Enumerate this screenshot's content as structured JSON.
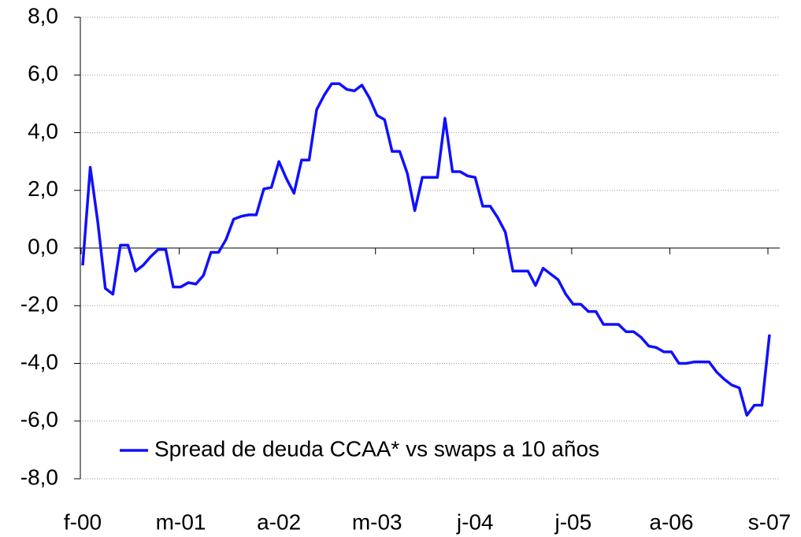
{
  "chart_data": {
    "type": "line",
    "categories": [
      "f-00",
      null,
      null,
      null,
      null,
      null,
      null,
      null,
      null,
      null,
      null,
      null,
      null,
      "m-01",
      null,
      null,
      null,
      null,
      null,
      null,
      null,
      null,
      null,
      null,
      null,
      null,
      "a-02",
      null,
      null,
      null,
      null,
      null,
      null,
      null,
      null,
      null,
      null,
      null,
      null,
      "m-03",
      null,
      null,
      null,
      null,
      null,
      null,
      null,
      null,
      null,
      null,
      null,
      null,
      "j-04",
      null,
      null,
      null,
      null,
      null,
      null,
      null,
      null,
      null,
      null,
      null,
      null,
      "j-05",
      null,
      null,
      null,
      null,
      null,
      null,
      null,
      null,
      null,
      null,
      null,
      null,
      "a-06",
      null,
      null,
      null,
      null,
      null,
      null,
      null,
      null,
      null,
      null,
      null,
      null,
      "s-07"
    ],
    "series": [
      {
        "name": "Spread de deuda CCAA* vs swaps a 10 años",
        "color": "#1010ff",
        "values": [
          -0.6,
          2.8,
          0.9,
          -1.4,
          -1.6,
          0.1,
          0.1,
          -0.8,
          -0.6,
          -0.3,
          -0.05,
          -0.05,
          -1.35,
          -1.35,
          -1.2,
          -1.25,
          -0.95,
          -0.15,
          -0.15,
          0.3,
          1.0,
          1.1,
          1.15,
          1.15,
          2.05,
          2.1,
          3.0,
          2.4,
          1.9,
          3.05,
          3.05,
          4.8,
          5.3,
          5.7,
          5.7,
          5.5,
          5.45,
          5.65,
          5.2,
          4.6,
          4.45,
          3.35,
          3.35,
          2.6,
          1.3,
          2.45,
          2.45,
          2.45,
          4.5,
          2.65,
          2.65,
          2.5,
          2.45,
          1.45,
          1.45,
          1.05,
          0.55,
          -0.8,
          -0.8,
          -0.8,
          -1.3,
          -0.7,
          -0.9,
          -1.1,
          -1.6,
          -1.95,
          -1.95,
          -2.2,
          -2.2,
          -2.65,
          -2.65,
          -2.65,
          -2.9,
          -2.9,
          -3.1,
          -3.4,
          -3.45,
          -3.6,
          -3.6,
          -4.0,
          -4.0,
          -3.95,
          -3.95,
          -3.95,
          -4.3,
          -4.55,
          -4.75,
          -4.85,
          -5.8,
          -5.45,
          -5.45,
          -3.0
        ]
      }
    ],
    "ylim": [
      -8,
      8
    ],
    "yticks": [
      {
        "value": -8,
        "label": "-8,0"
      },
      {
        "value": -6,
        "label": "-6,0"
      },
      {
        "value": -4,
        "label": "-4,0"
      },
      {
        "value": -2,
        "label": "-2,0"
      },
      {
        "value": 0,
        "label": "0,0"
      },
      {
        "value": 2,
        "label": "2,0"
      },
      {
        "value": 4,
        "label": "4,0"
      },
      {
        "value": 6,
        "label": "6,0"
      },
      {
        "value": 8,
        "label": "8,0"
      }
    ],
    "grid": true,
    "legend": "lower center"
  }
}
